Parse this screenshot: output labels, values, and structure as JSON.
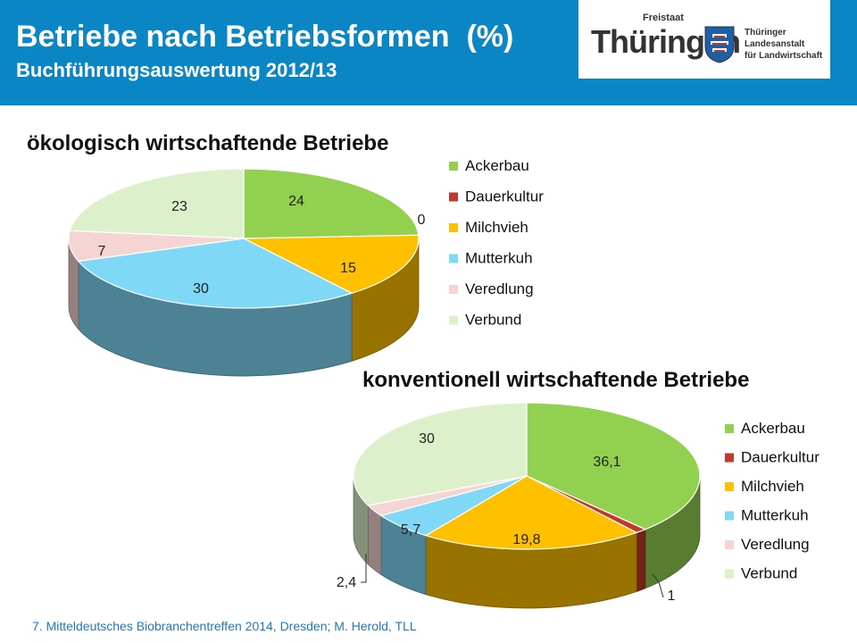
{
  "header": {
    "title": "Betriebe nach Betriebsformen  (%)",
    "subtitle": "Buchführungsauswertung 2012/13",
    "logo": {
      "freistaat": "Freistaat",
      "thueringen": "Thüringen",
      "tll_lines": [
        "Thüringer",
        "Landesanstalt",
        "für Landwirtschaft"
      ]
    }
  },
  "colors": {
    "Ackerbau": "#92d050",
    "Dauerkultur": "#c0392b",
    "Milchvieh": "#ffc000",
    "Mutterkuh": "#7fd8f6",
    "Veredlung": "#f5d5d3",
    "Verbund": "#ddf0cc",
    "header": "#0a86c5"
  },
  "chart_data": [
    {
      "type": "pie",
      "title": "ökologisch wirtschaftende Betriebe",
      "categories": [
        "Ackerbau",
        "Dauerkultur",
        "Milchvieh",
        "Mutterkuh",
        "Veredlung",
        "Verbund"
      ],
      "values": [
        24,
        0,
        15,
        30,
        7,
        23
      ],
      "data_labels": [
        "24",
        "0",
        "15",
        "30",
        "7",
        "23"
      ],
      "legend": [
        "Ackerbau",
        "Dauerkultur",
        "Milchvieh",
        "Mutterkuh",
        "Veredlung",
        "Verbund"
      ],
      "legend_position": "right",
      "style": "3d"
    },
    {
      "type": "pie",
      "title": "konventionell wirtschaftende Betriebe",
      "categories": [
        "Ackerbau",
        "Dauerkultur",
        "Milchvieh",
        "Mutterkuh",
        "Veredlung",
        "Verbund"
      ],
      "values": [
        36.1,
        1,
        19.8,
        5.7,
        2.4,
        30
      ],
      "data_labels": [
        "36,1",
        "1",
        "19,8",
        "5,7",
        "2,4",
        "30"
      ],
      "legend": [
        "Ackerbau",
        "Dauerkultur",
        "Milchvieh",
        "Mutterkuh",
        "Veredlung",
        "Verbund"
      ],
      "legend_position": "right",
      "style": "3d"
    }
  ],
  "footer": "7. Mitteldeutsches Biobranchentreffen 2014, Dresden; M. Herold, TLL"
}
